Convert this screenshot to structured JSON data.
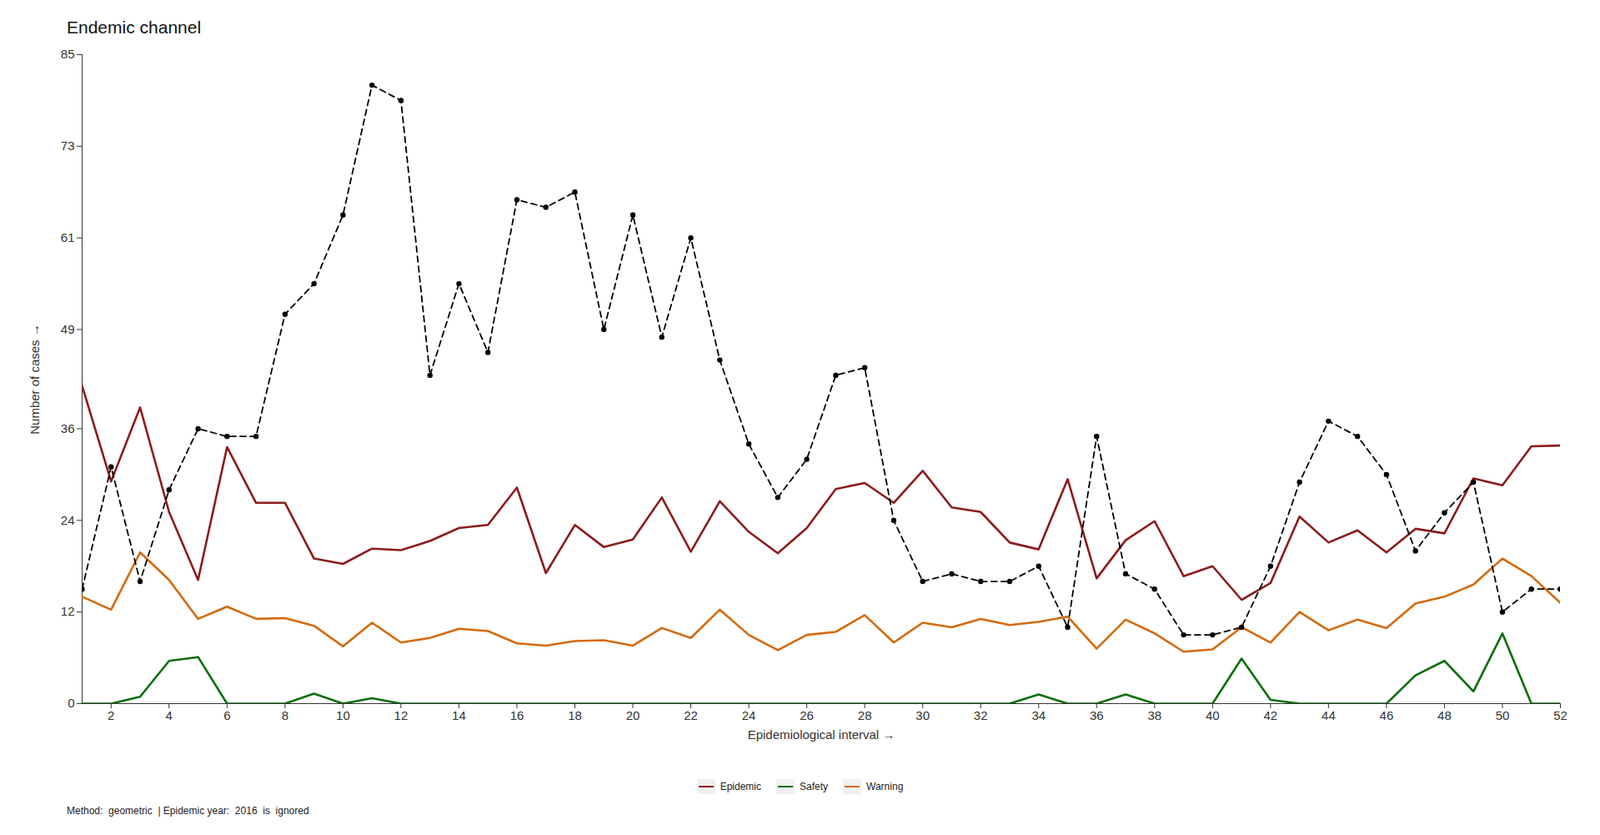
{
  "chart_data": {
    "type": "line",
    "title": "Endemic channel",
    "x_label": "Epidemiological interval",
    "y_label": "Number of cases",
    "caption": "Method:  geometric  | Epidemic year:  2016  is  ignored",
    "x": [
      1,
      2,
      3,
      4,
      5,
      6,
      7,
      8,
      9,
      10,
      11,
      12,
      13,
      14,
      15,
      16,
      17,
      18,
      19,
      20,
      21,
      22,
      23,
      24,
      25,
      26,
      27,
      28,
      29,
      30,
      31,
      32,
      33,
      34,
      35,
      36,
      37,
      38,
      39,
      40,
      41,
      42,
      43,
      44,
      45,
      46,
      47,
      48,
      49,
      50,
      51,
      52
    ],
    "xlim": [
      1,
      52
    ],
    "xticks": [
      2,
      4,
      6,
      8,
      10,
      12,
      14,
      16,
      18,
      20,
      22,
      24,
      26,
      28,
      30,
      32,
      34,
      36,
      38,
      40,
      42,
      44,
      46,
      48,
      50,
      52
    ],
    "ylim": [
      0,
      85
    ],
    "yticks": [
      0,
      12,
      24,
      36,
      49,
      61,
      73,
      85
    ],
    "grid": false,
    "legend": "bottom",
    "series": [
      {
        "name": "Epidemic",
        "color": "#8B1C1C",
        "line_style": "solid",
        "values": [
          41.6,
          29.1,
          38.8,
          25.1,
          16.2,
          33.6,
          26.3,
          26.3,
          19,
          18.3,
          20.3,
          20.1,
          21.3,
          23,
          23.4,
          28.3,
          17.1,
          23.4,
          20.5,
          21.5,
          27,
          19.9,
          26.5,
          22.5,
          19.7,
          23,
          28.1,
          28.9,
          26.3,
          30.5,
          25.7,
          25.1,
          21.1,
          20.2,
          29.4,
          16.4,
          21.4,
          23.9,
          16.7,
          18,
          13.6,
          15.8,
          24.5,
          21.1,
          22.7,
          19.8,
          22.9,
          22.3,
          29.5,
          28.6,
          33.7,
          33.8
        ]
      },
      {
        "name": "Safety",
        "color": "#0B6E0B",
        "line_style": "solid",
        "values": [
          0,
          0,
          0.9,
          5.6,
          6.1,
          0,
          0,
          0,
          1.3,
          0,
          0.7,
          0,
          0,
          0,
          0,
          0,
          0,
          0,
          0,
          0,
          0,
          0,
          0,
          0,
          0,
          0,
          0,
          0,
          0,
          0,
          0,
          0,
          0,
          1.2,
          0,
          0,
          1.2,
          0,
          0,
          0,
          5.9,
          0.5,
          0,
          0,
          0,
          0,
          3.7,
          5.6,
          1.6,
          9.2,
          0,
          0
        ]
      },
      {
        "name": "Warning",
        "color": "#D46A0B",
        "line_style": "solid",
        "values": [
          14,
          12.3,
          19.8,
          16.2,
          11.1,
          12.7,
          11.1,
          11.2,
          10.2,
          7.5,
          10.6,
          8,
          8.6,
          9.8,
          9.5,
          7.9,
          7.6,
          8.2,
          8.3,
          7.6,
          9.9,
          8.6,
          12.3,
          9,
          7,
          9,
          9.4,
          11.6,
          8,
          10.6,
          10,
          11.1,
          10.3,
          10.7,
          11.4,
          7.2,
          11,
          9.2,
          6.8,
          7.1,
          10,
          8,
          12,
          9.6,
          11,
          9.9,
          13.1,
          14,
          15.6,
          19,
          16.7,
          13.2
        ]
      },
      {
        "color": "#000000",
        "line_style": "dashed",
        "marker": "circle",
        "values": [
          15,
          31,
          16,
          28,
          36,
          35,
          35,
          51,
          55,
          64,
          81,
          79,
          43,
          55,
          46,
          66,
          65,
          67,
          49,
          64,
          48,
          61,
          45,
          34,
          27,
          32,
          43,
          44,
          24,
          16,
          17,
          16,
          16,
          18,
          10,
          35,
          17,
          15,
          9,
          9,
          10,
          18,
          29,
          37,
          35,
          30,
          20,
          25,
          29,
          12,
          15,
          15
        ]
      }
    ]
  }
}
